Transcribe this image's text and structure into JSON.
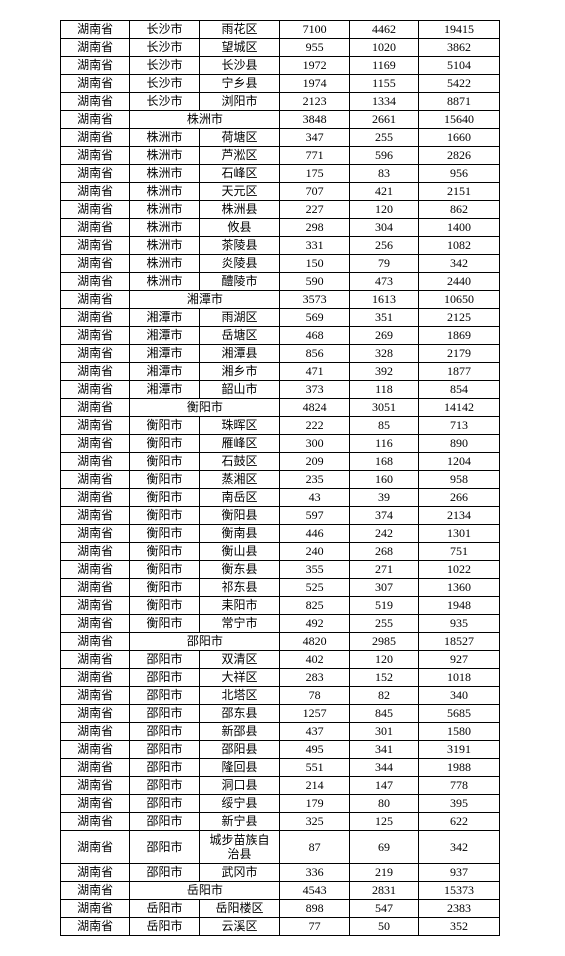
{
  "table": {
    "background_color": "#ffffff",
    "border_color": "#000000",
    "font_size": 12,
    "text_color": "#000000",
    "columns": [
      "province",
      "city",
      "district",
      "val1",
      "val2",
      "val3"
    ],
    "rows": [
      {
        "province": "湖南省",
        "city": "长沙市",
        "district": "雨花区",
        "v1": "7100",
        "v2": "4462",
        "v3": "19415"
      },
      {
        "province": "湖南省",
        "city": "长沙市",
        "district": "望城区",
        "v1": "955",
        "v2": "1020",
        "v3": "3862"
      },
      {
        "province": "湖南省",
        "city": "长沙市",
        "district": "长沙县",
        "v1": "1972",
        "v2": "1169",
        "v3": "5104"
      },
      {
        "province": "湖南省",
        "city": "长沙市",
        "district": "宁乡县",
        "v1": "1974",
        "v2": "1155",
        "v3": "5422"
      },
      {
        "province": "湖南省",
        "city": "长沙市",
        "district": "浏阳市",
        "v1": "2123",
        "v2": "1334",
        "v3": "8871"
      },
      {
        "province": "湖南省",
        "subtotal": "株洲市",
        "v1": "3848",
        "v2": "2661",
        "v3": "15640"
      },
      {
        "province": "湖南省",
        "city": "株洲市",
        "district": "荷塘区",
        "v1": "347",
        "v2": "255",
        "v3": "1660"
      },
      {
        "province": "湖南省",
        "city": "株洲市",
        "district": "芦淞区",
        "v1": "771",
        "v2": "596",
        "v3": "2826"
      },
      {
        "province": "湖南省",
        "city": "株洲市",
        "district": "石峰区",
        "v1": "175",
        "v2": "83",
        "v3": "956"
      },
      {
        "province": "湖南省",
        "city": "株洲市",
        "district": "天元区",
        "v1": "707",
        "v2": "421",
        "v3": "2151"
      },
      {
        "province": "湖南省",
        "city": "株洲市",
        "district": "株洲县",
        "v1": "227",
        "v2": "120",
        "v3": "862"
      },
      {
        "province": "湖南省",
        "city": "株洲市",
        "district": "攸县",
        "v1": "298",
        "v2": "304",
        "v3": "1400"
      },
      {
        "province": "湖南省",
        "city": "株洲市",
        "district": "茶陵县",
        "v1": "331",
        "v2": "256",
        "v3": "1082"
      },
      {
        "province": "湖南省",
        "city": "株洲市",
        "district": "炎陵县",
        "v1": "150",
        "v2": "79",
        "v3": "342"
      },
      {
        "province": "湖南省",
        "city": "株洲市",
        "district": "醴陵市",
        "v1": "590",
        "v2": "473",
        "v3": "2440"
      },
      {
        "province": "湖南省",
        "subtotal": "湘潭市",
        "v1": "3573",
        "v2": "1613",
        "v3": "10650"
      },
      {
        "province": "湖南省",
        "city": "湘潭市",
        "district": "雨湖区",
        "v1": "569",
        "v2": "351",
        "v3": "2125"
      },
      {
        "province": "湖南省",
        "city": "湘潭市",
        "district": "岳塘区",
        "v1": "468",
        "v2": "269",
        "v3": "1869"
      },
      {
        "province": "湖南省",
        "city": "湘潭市",
        "district": "湘潭县",
        "v1": "856",
        "v2": "328",
        "v3": "2179"
      },
      {
        "province": "湖南省",
        "city": "湘潭市",
        "district": "湘乡市",
        "v1": "471",
        "v2": "392",
        "v3": "1877"
      },
      {
        "province": "湖南省",
        "city": "湘潭市",
        "district": "韶山市",
        "v1": "373",
        "v2": "118",
        "v3": "854"
      },
      {
        "province": "湖南省",
        "subtotal": "衡阳市",
        "v1": "4824",
        "v2": "3051",
        "v3": "14142"
      },
      {
        "province": "湖南省",
        "city": "衡阳市",
        "district": "珠晖区",
        "v1": "222",
        "v2": "85",
        "v3": "713"
      },
      {
        "province": "湖南省",
        "city": "衡阳市",
        "district": "雁峰区",
        "v1": "300",
        "v2": "116",
        "v3": "890"
      },
      {
        "province": "湖南省",
        "city": "衡阳市",
        "district": "石鼓区",
        "v1": "209",
        "v2": "168",
        "v3": "1204"
      },
      {
        "province": "湖南省",
        "city": "衡阳市",
        "district": "蒸湘区",
        "v1": "235",
        "v2": "160",
        "v3": "958"
      },
      {
        "province": "湖南省",
        "city": "衡阳市",
        "district": "南岳区",
        "v1": "43",
        "v2": "39",
        "v3": "266"
      },
      {
        "province": "湖南省",
        "city": "衡阳市",
        "district": "衡阳县",
        "v1": "597",
        "v2": "374",
        "v3": "2134"
      },
      {
        "province": "湖南省",
        "city": "衡阳市",
        "district": "衡南县",
        "v1": "446",
        "v2": "242",
        "v3": "1301"
      },
      {
        "province": "湖南省",
        "city": "衡阳市",
        "district": "衡山县",
        "v1": "240",
        "v2": "268",
        "v3": "751"
      },
      {
        "province": "湖南省",
        "city": "衡阳市",
        "district": "衡东县",
        "v1": "355",
        "v2": "271",
        "v3": "1022"
      },
      {
        "province": "湖南省",
        "city": "衡阳市",
        "district": "祁东县",
        "v1": "525",
        "v2": "307",
        "v3": "1360"
      },
      {
        "province": "湖南省",
        "city": "衡阳市",
        "district": "耒阳市",
        "v1": "825",
        "v2": "519",
        "v3": "1948"
      },
      {
        "province": "湖南省",
        "city": "衡阳市",
        "district": "常宁市",
        "v1": "492",
        "v2": "255",
        "v3": "935"
      },
      {
        "province": "湖南省",
        "subtotal": "邵阳市",
        "v1": "4820",
        "v2": "2985",
        "v3": "18527"
      },
      {
        "province": "湖南省",
        "city": "邵阳市",
        "district": "双清区",
        "v1": "402",
        "v2": "120",
        "v3": "927"
      },
      {
        "province": "湖南省",
        "city": "邵阳市",
        "district": "大祥区",
        "v1": "283",
        "v2": "152",
        "v3": "1018"
      },
      {
        "province": "湖南省",
        "city": "邵阳市",
        "district": "北塔区",
        "v1": "78",
        "v2": "82",
        "v3": "340"
      },
      {
        "province": "湖南省",
        "city": "邵阳市",
        "district": "邵东县",
        "v1": "1257",
        "v2": "845",
        "v3": "5685"
      },
      {
        "province": "湖南省",
        "city": "邵阳市",
        "district": "新邵县",
        "v1": "437",
        "v2": "301",
        "v3": "1580"
      },
      {
        "province": "湖南省",
        "city": "邵阳市",
        "district": "邵阳县",
        "v1": "495",
        "v2": "341",
        "v3": "3191"
      },
      {
        "province": "湖南省",
        "city": "邵阳市",
        "district": "隆回县",
        "v1": "551",
        "v2": "344",
        "v3": "1988"
      },
      {
        "province": "湖南省",
        "city": "邵阳市",
        "district": "洞口县",
        "v1": "214",
        "v2": "147",
        "v3": "778"
      },
      {
        "province": "湖南省",
        "city": "邵阳市",
        "district": "绥宁县",
        "v1": "179",
        "v2": "80",
        "v3": "395"
      },
      {
        "province": "湖南省",
        "city": "邵阳市",
        "district": "新宁县",
        "v1": "325",
        "v2": "125",
        "v3": "622"
      },
      {
        "province": "湖南省",
        "city": "邵阳市",
        "district": "城步苗族自治县",
        "v1": "87",
        "v2": "69",
        "v3": "342",
        "tall": true
      },
      {
        "province": "湖南省",
        "city": "邵阳市",
        "district": "武冈市",
        "v1": "336",
        "v2": "219",
        "v3": "937"
      },
      {
        "province": "湖南省",
        "subtotal": "岳阳市",
        "v1": "4543",
        "v2": "2831",
        "v3": "15373"
      },
      {
        "province": "湖南省",
        "city": "岳阳市",
        "district": "岳阳楼区",
        "v1": "898",
        "v2": "547",
        "v3": "2383"
      },
      {
        "province": "湖南省",
        "city": "岳阳市",
        "district": "云溪区",
        "v1": "77",
        "v2": "50",
        "v3": "352"
      }
    ]
  }
}
